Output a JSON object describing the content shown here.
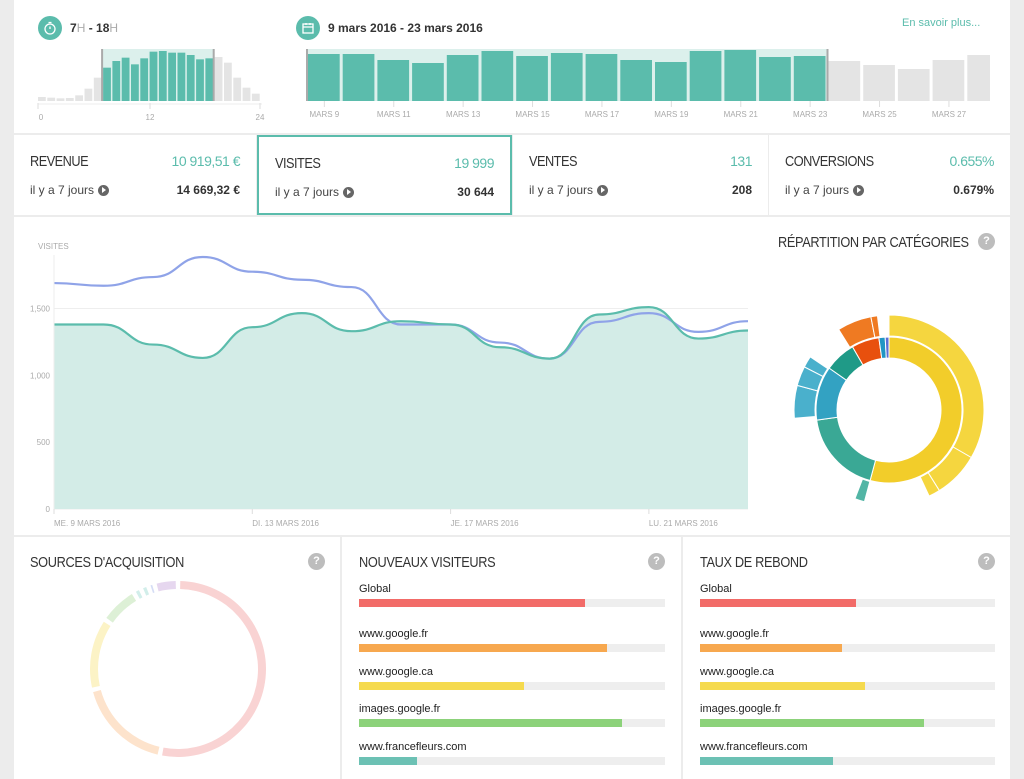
{
  "header": {
    "hours_label_from": "7",
    "hours_label_to": "18",
    "hours_unit": "H",
    "date_range": "9 mars 2016 - 23 mars 2016",
    "learn_more": "En savoir plus...",
    "icons": [
      "stopwatch-icon",
      "calendar-icon"
    ]
  },
  "hour_histogram": {
    "ticks": [
      "0",
      "12",
      "24"
    ],
    "values": [
      12,
      10,
      8,
      9,
      17,
      37,
      70,
      100,
      120,
      130,
      110,
      128,
      148,
      150,
      145,
      145,
      138,
      125,
      128,
      132,
      115,
      70,
      40,
      22
    ],
    "selected": [
      7,
      18
    ]
  },
  "day_histogram": {
    "ticks": [
      "MARS 9",
      "MARS 11",
      "MARS 13",
      "MARS 15",
      "MARS 17",
      "MARS 19",
      "MARS 21",
      "MARS 23",
      "MARS 25",
      "MARS 27"
    ],
    "values": [
      47,
      47,
      41,
      38,
      46,
      50,
      45,
      48,
      47,
      41,
      39,
      50,
      51,
      44,
      45,
      40,
      36,
      32,
      41,
      46
    ],
    "selected_count": 15
  },
  "kpis": [
    {
      "title": "REVENUE",
      "value": "10 919,51 €",
      "sub": "il y a 7 jours",
      "prev": "14 669,32 €"
    },
    {
      "title": "VISITES",
      "value": "19 999",
      "sub": "il y a 7 jours",
      "prev": "30 644"
    },
    {
      "title": "VENTES",
      "value": "131",
      "sub": "il y a 7 jours",
      "prev": "208"
    },
    {
      "title": "CONVERSIONS",
      "value": "0.655%",
      "sub": "il y a 7 jours",
      "prev": "0.679%"
    }
  ],
  "chart_data": [
    {
      "type": "area",
      "ylabel": "VISITES",
      "ylim": [
        0,
        1900
      ],
      "yticks": [
        "0",
        "500",
        "1,000",
        "1,500"
      ],
      "ytick_values": [
        0,
        500,
        1000,
        1500
      ],
      "xticks": [
        "ME. 9 MARS 2016",
        "DI. 13 MARS 2016",
        "JE. 17 MARS 2016",
        "LU. 21 MARS 2016"
      ],
      "xtick_days": [
        9,
        13,
        17,
        21
      ],
      "x_days": [
        9,
        10,
        11,
        12,
        13,
        14,
        15,
        16,
        17,
        18,
        19,
        20,
        21,
        22,
        23
      ],
      "series": [
        {
          "values": [
            1380,
            1380,
            1230,
            1130,
            1360,
            1465,
            1330,
            1405,
            1380,
            1210,
            1125,
            1455,
            1510,
            1275,
            1335
          ],
          "color": "#5bbcac",
          "fill": "#d3ece7"
        },
        {
          "values": [
            1690,
            1670,
            1735,
            1885,
            1775,
            1715,
            1660,
            1380,
            1380,
            1245,
            1125,
            1400,
            1465,
            1325,
            1405
          ],
          "color": "#8fa3e8"
        }
      ]
    },
    {
      "type": "sunburst",
      "title": "RÉPARTITION PAR CATÉGORIES",
      "inner": [
        {
          "value": 195,
          "color": "#f2cd2a"
        },
        {
          "value": 67,
          "color": "#3aa895"
        },
        {
          "value": 43,
          "color": "#33a2c2"
        },
        {
          "value": 25,
          "color": "#1f9a87"
        },
        {
          "value": 22,
          "color": "#e8500e"
        },
        {
          "value": 5,
          "color": "#2196c4"
        },
        {
          "value": 3,
          "color": "#5b6fd6"
        }
      ],
      "outer": [
        {
          "start": 0,
          "end": 120,
          "color": "#f5d63f"
        },
        {
          "start": 120,
          "end": 148,
          "color": "#f5d63f"
        },
        {
          "start": 148,
          "end": 155,
          "color": "#f5d63f"
        },
        {
          "start": 195,
          "end": 201,
          "color": "#52b5a5"
        },
        {
          "start": 265,
          "end": 285,
          "color": "#4ab0cc"
        },
        {
          "start": 285,
          "end": 297,
          "color": "#4ab0cc"
        },
        {
          "start": 297,
          "end": 304,
          "color": "#4ab0cc"
        },
        {
          "start": 328,
          "end": 349,
          "color": "#ef7a22"
        },
        {
          "start": 349,
          "end": 353,
          "color": "#ef7a22"
        }
      ]
    },
    {
      "type": "pie",
      "title": "SOURCES D'ACQUISITION",
      "segments": [
        {
          "value": 185,
          "color": "#f9d3d3"
        },
        {
          "value": 62,
          "color": "#fde3cc"
        },
        {
          "value": 46,
          "color": "#fcf3c6"
        },
        {
          "value": 25,
          "color": "#ddf0d6"
        },
        {
          "value": 5,
          "color": "#d2eeea"
        },
        {
          "value": 5,
          "color": "#d2eeea"
        },
        {
          "value": 4,
          "color": "#d5ddf5"
        },
        {
          "value": 15,
          "color": "#e6d7ef"
        }
      ]
    }
  ],
  "nouveaux": {
    "title": "NOUVEAUX VISITEURS",
    "rows": [
      {
        "label": "Global",
        "pct": 74,
        "color": "#f26b68"
      },
      {
        "label": "www.google.fr",
        "pct": 81,
        "color": "#f7a84f"
      },
      {
        "label": "www.google.ca",
        "pct": 54,
        "color": "#f5da4e"
      },
      {
        "label": "images.google.fr",
        "pct": 86,
        "color": "#8cd27a"
      },
      {
        "label": "www.francefleurs.com",
        "pct": 19,
        "color": "#6cc1b4"
      }
    ]
  },
  "rebond": {
    "title": "TAUX DE REBOND",
    "rows": [
      {
        "label": "Global",
        "pct": 53,
        "color": "#f26b68"
      },
      {
        "label": "www.google.fr",
        "pct": 48,
        "color": "#f7a84f"
      },
      {
        "label": "www.google.ca",
        "pct": 56,
        "color": "#f5da4e"
      },
      {
        "label": "images.google.fr",
        "pct": 76,
        "color": "#8cd27a"
      },
      {
        "label": "www.francefleurs.com",
        "pct": 45,
        "color": "#6cc1b4"
      }
    ]
  },
  "help_label": "?"
}
